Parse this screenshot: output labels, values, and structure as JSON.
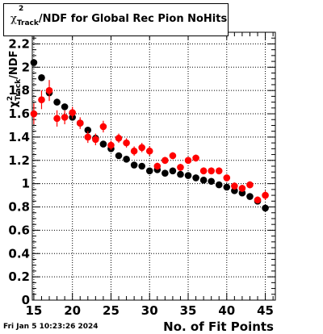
{
  "title": {
    "symbol": "χ",
    "superscript": "2",
    "subscript": "Track",
    "rest": "/NDF for Global Rec Pion NoHits"
  },
  "timestamp": "Fri Jan  5 10:23:26 2024",
  "chart_data": {
    "type": "scatter",
    "title": "χ2 Track/NDF for Global Rec Pion NoHits",
    "xlabel": "No. of Fit Points",
    "ylabel": {
      "symbol": "χ",
      "superscript": "2",
      "subscript": "Track",
      "rest": "/NDF"
    },
    "xlim": [
      14.8,
      46.3
    ],
    "ylim": [
      0,
      2.3
    ],
    "x_ticks": [
      15,
      20,
      25,
      30,
      35,
      40,
      45
    ],
    "y_ticks": [
      0,
      0.2,
      0.4,
      0.6,
      0.8,
      1,
      1.2,
      1.4,
      1.6,
      1.8,
      2,
      2.2
    ],
    "grid": true,
    "series": [
      {
        "color": "#000000",
        "points": [
          {
            "x": 15,
            "y": 2.04,
            "err": 0.0
          },
          {
            "x": 16,
            "y": 1.91,
            "err": 0.0
          },
          {
            "x": 17,
            "y": 1.78,
            "err": 0.0
          },
          {
            "x": 18,
            "y": 1.7,
            "err": 0.0
          },
          {
            "x": 19,
            "y": 1.66,
            "err": 0.0
          },
          {
            "x": 20,
            "y": 1.57,
            "err": 0.0
          },
          {
            "x": 21,
            "y": 1.52,
            "err": 0.0
          },
          {
            "x": 22,
            "y": 1.46,
            "err": 0.0
          },
          {
            "x": 23,
            "y": 1.39,
            "err": 0.0
          },
          {
            "x": 24,
            "y": 1.34,
            "err": 0.0
          },
          {
            "x": 25,
            "y": 1.3,
            "err": 0.0
          },
          {
            "x": 26,
            "y": 1.24,
            "err": 0.0
          },
          {
            "x": 27,
            "y": 1.21,
            "err": 0.0
          },
          {
            "x": 28,
            "y": 1.16,
            "err": 0.0
          },
          {
            "x": 29,
            "y": 1.15,
            "err": 0.0
          },
          {
            "x": 30,
            "y": 1.11,
            "err": 0.0
          },
          {
            "x": 31,
            "y": 1.12,
            "err": 0.0
          },
          {
            "x": 32,
            "y": 1.09,
            "err": 0.0
          },
          {
            "x": 33,
            "y": 1.11,
            "err": 0.0
          },
          {
            "x": 34,
            "y": 1.08,
            "err": 0.0
          },
          {
            "x": 35,
            "y": 1.07,
            "err": 0.0
          },
          {
            "x": 36,
            "y": 1.05,
            "err": 0.0
          },
          {
            "x": 37,
            "y": 1.03,
            "err": 0.0
          },
          {
            "x": 38,
            "y": 1.02,
            "err": 0.0
          },
          {
            "x": 39,
            "y": 0.99,
            "err": 0.0
          },
          {
            "x": 40,
            "y": 0.97,
            "err": 0.0
          },
          {
            "x": 41,
            "y": 0.94,
            "err": 0.0
          },
          {
            "x": 42,
            "y": 0.92,
            "err": 0.0
          },
          {
            "x": 43,
            "y": 0.89,
            "err": 0.0
          },
          {
            "x": 44,
            "y": 0.85,
            "err": 0.0
          },
          {
            "x": 45,
            "y": 0.79,
            "err": 0.0
          }
        ]
      },
      {
        "color": "#ff0000",
        "points": [
          {
            "x": 15,
            "y": 1.6,
            "err": 0.09
          },
          {
            "x": 16,
            "y": 1.72,
            "err": 0.08
          },
          {
            "x": 17,
            "y": 1.8,
            "err": 0.09
          },
          {
            "x": 18,
            "y": 1.56,
            "err": 0.07
          },
          {
            "x": 19,
            "y": 1.57,
            "err": 0.06
          },
          {
            "x": 20,
            "y": 1.61,
            "err": 0.05
          },
          {
            "x": 21,
            "y": 1.52,
            "err": 0.05
          },
          {
            "x": 22,
            "y": 1.4,
            "err": 0.05
          },
          {
            "x": 23,
            "y": 1.38,
            "err": 0.05
          },
          {
            "x": 24,
            "y": 1.49,
            "err": 0.05
          },
          {
            "x": 25,
            "y": 1.33,
            "err": 0.04
          },
          {
            "x": 26,
            "y": 1.39,
            "err": 0.04
          },
          {
            "x": 27,
            "y": 1.35,
            "err": 0.04
          },
          {
            "x": 28,
            "y": 1.28,
            "err": 0.04
          },
          {
            "x": 29,
            "y": 1.31,
            "err": 0.04
          },
          {
            "x": 30,
            "y": 1.28,
            "err": 0.04
          },
          {
            "x": 31,
            "y": 1.15,
            "err": 0.03
          },
          {
            "x": 32,
            "y": 1.2,
            "err": 0.03
          },
          {
            "x": 33,
            "y": 1.24,
            "err": 0.03
          },
          {
            "x": 34,
            "y": 1.14,
            "err": 0.03
          },
          {
            "x": 35,
            "y": 1.2,
            "err": 0.03
          },
          {
            "x": 36,
            "y": 1.22,
            "err": 0.03
          },
          {
            "x": 37,
            "y": 1.11,
            "err": 0.03
          },
          {
            "x": 38,
            "y": 1.11,
            "err": 0.03
          },
          {
            "x": 39,
            "y": 1.11,
            "err": 0.03
          },
          {
            "x": 40,
            "y": 1.05,
            "err": 0.03
          },
          {
            "x": 41,
            "y": 0.98,
            "err": 0.03
          },
          {
            "x": 42,
            "y": 0.96,
            "err": 0.03
          },
          {
            "x": 43,
            "y": 0.99,
            "err": 0.03
          },
          {
            "x": 44,
            "y": 0.86,
            "err": 0.03
          },
          {
            "x": 45,
            "y": 0.9,
            "err": 0.04
          }
        ]
      }
    ]
  }
}
